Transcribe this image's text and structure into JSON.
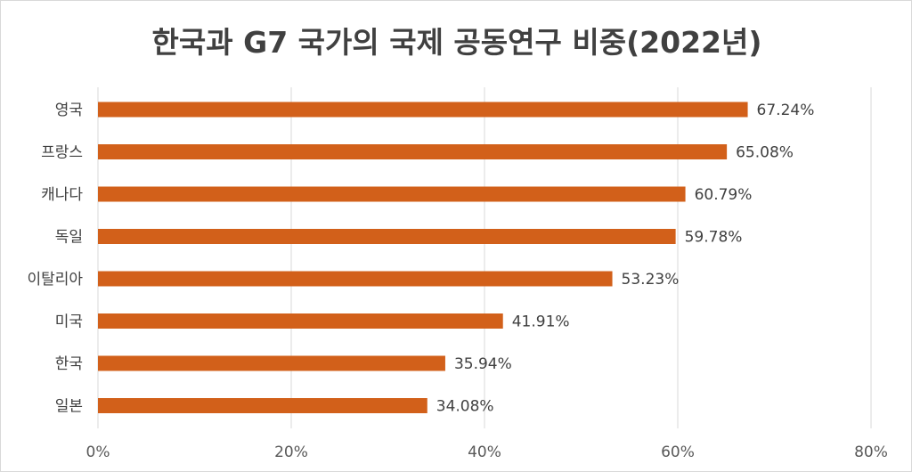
{
  "chart_data": {
    "type": "bar",
    "orientation": "horizontal",
    "title": "한국과 G7 국가의 국제 공동연구 비중(2022년)",
    "categories": [
      "영국",
      "프랑스",
      "캐나다",
      "독일",
      "이탈리아",
      "미국",
      "한국",
      "일본"
    ],
    "values": [
      67.24,
      65.08,
      60.79,
      59.78,
      53.23,
      41.91,
      35.94,
      34.08
    ],
    "value_labels": [
      "67.24%",
      "65.08%",
      "60.79%",
      "59.78%",
      "53.23%",
      "41.91%",
      "35.94%",
      "34.08%"
    ],
    "xlim": [
      0,
      80
    ],
    "xticks": [
      0,
      20,
      40,
      60,
      80
    ],
    "xtick_labels": [
      "0%",
      "20%",
      "40%",
      "60%",
      "80%"
    ],
    "grid": "vertical",
    "legend": "none",
    "bar_color": "#d2601a",
    "grid_color": "#d9d9d9"
  }
}
